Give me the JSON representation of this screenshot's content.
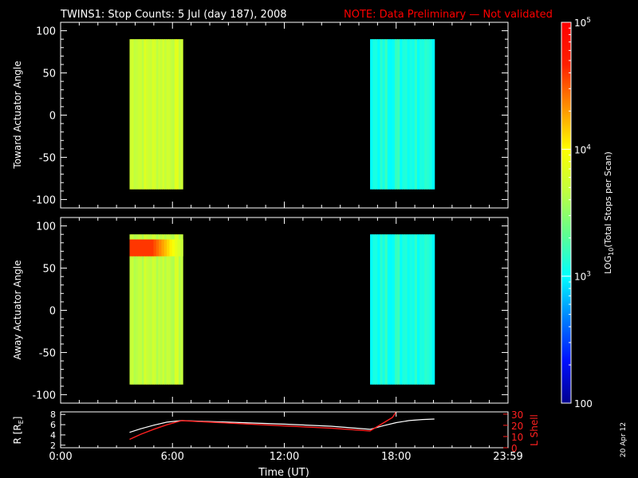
{
  "title": {
    "main": "TWINS1: Stop Counts:  5 Jul (day 187), 2008",
    "note": "NOTE: Data Preliminary — Not validated"
  },
  "stamp": "20 Apr 12",
  "colors": {
    "background": "#000000",
    "axes": "#ffffff",
    "note": "#ff0000",
    "rshell": "#ffffff",
    "lshell": "#ff2020"
  },
  "chart_data": [
    {
      "type": "heatmap",
      "panel": "toward",
      "ylabel": "Toward Actuator Angle",
      "xlim": [
        0,
        24
      ],
      "ylim": [
        -110,
        110
      ],
      "yticks": [
        -100,
        -50,
        0,
        50,
        100
      ],
      "grid": false,
      "blocks": [
        {
          "t_start": 3.7,
          "t_end": 6.55,
          "angle_min": -88,
          "angle_max": 90,
          "log10_counts": 3.75
        },
        {
          "t_start": 16.6,
          "t_end": 20.05,
          "angle_min": -88,
          "angle_max": 90,
          "log10_counts": 3.1
        }
      ]
    },
    {
      "type": "heatmap",
      "panel": "away",
      "ylabel": "Away Actuator Angle",
      "xlim": [
        0,
        24
      ],
      "ylim": [
        -110,
        110
      ],
      "yticks": [
        -100,
        -50,
        0,
        50,
        100
      ],
      "grid": false,
      "blocks": [
        {
          "t_start": 3.7,
          "t_end": 6.55,
          "angle_min": -88,
          "angle_max": 90,
          "log10_counts": 3.7
        },
        {
          "t_start": 16.6,
          "t_end": 20.05,
          "angle_min": -88,
          "angle_max": 90,
          "log10_counts": 3.1
        }
      ],
      "hotspot": {
        "t_start": 3.7,
        "t_end": 6.55,
        "angle_min": 64,
        "angle_max": 84,
        "log10_counts": 4.6
      }
    },
    {
      "type": "line",
      "panel": "orbit",
      "xlabel": "Time (UT)",
      "xlim": [
        0,
        24
      ],
      "xticks": [
        0,
        6,
        12,
        18,
        24
      ],
      "xtick_labels": [
        "0:00",
        "6:00",
        "12:00",
        "18:00",
        "23:59"
      ],
      "ylabel_left": "R [R",
      "ylabel_left_sub": "E",
      "ylabel_right": "L Shell",
      "ylim_left": [
        1.5,
        8.5
      ],
      "yticks_left": [
        2,
        4,
        6,
        8
      ],
      "ylim_right": [
        0,
        32
      ],
      "yticks_right": [
        0,
        10,
        20,
        30
      ],
      "series": [
        {
          "axis": "left",
          "x": [
            3.7,
            4.3,
            5.0,
            5.7,
            6.5,
            9.0,
            12.0,
            14.5,
            16.6,
            17.3,
            18.0,
            18.7,
            19.4,
            20.05
          ],
          "y": [
            4.5,
            5.2,
            5.9,
            6.5,
            6.8,
            6.5,
            6.1,
            5.7,
            5.1,
            5.8,
            6.4,
            6.8,
            7.0,
            7.1
          ]
        },
        {
          "axis": "right",
          "x": [
            3.7,
            4.3,
            5.0,
            5.7,
            6.5,
            9.0,
            12.0,
            14.5,
            16.6,
            17.2,
            17.8,
            18.0
          ],
          "y": [
            7.5,
            12.0,
            16.5,
            20.5,
            24.2,
            22.0,
            19.5,
            17.5,
            15.0,
            21.0,
            27.0,
            32.0
          ]
        }
      ]
    },
    {
      "type": "colorbar",
      "label_prefix": "LOG",
      "label_sub": "10",
      "label_suffix": "(Total Stops per Scan)",
      "tick_labels": [
        {
          "base": "10",
          "exp": "5",
          "log": 5.0
        },
        {
          "base": "10",
          "exp": "4",
          "log": 4.0
        },
        {
          "base": "10",
          "exp": "3",
          "log": 3.0
        },
        {
          "base": "100",
          "exp": "",
          "log": 2.0
        }
      ],
      "range": [
        2.0,
        5.0
      ],
      "colors": [
        "#00008f",
        "#0010ff",
        "#0080ff",
        "#00ffff",
        "#60ff90",
        "#c0ff40",
        "#ffff00",
        "#ff9000",
        "#ff2000",
        "#ff0000"
      ]
    }
  ]
}
